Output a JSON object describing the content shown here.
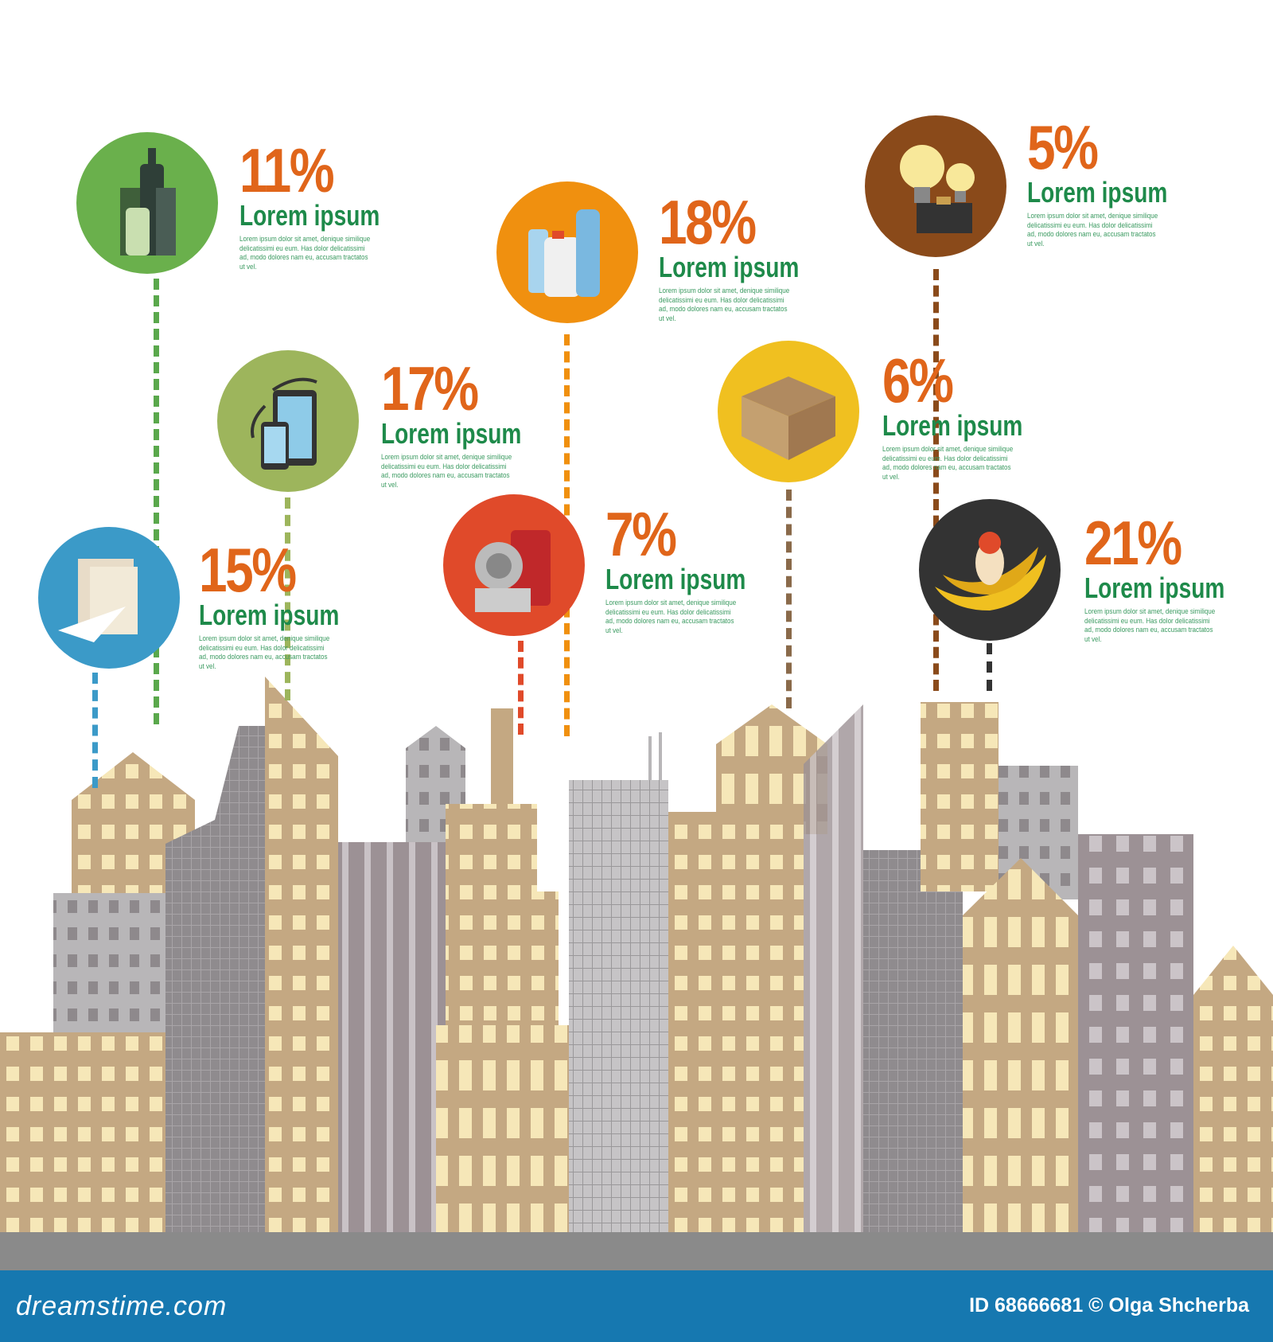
{
  "items": [
    {
      "id": "glass",
      "icon": "bottles-icon",
      "percent": "11%",
      "title": "Lorem ipsum",
      "color": "#6ab04c"
    },
    {
      "id": "electronics",
      "icon": "devices-icon",
      "percent": "17%",
      "title": "Lorem ipsum",
      "color": "#9db55c"
    },
    {
      "id": "paper",
      "icon": "paper-icon",
      "percent": "15%",
      "title": "Lorem ipsum",
      "color": "#3b9ac8"
    },
    {
      "id": "plastic",
      "icon": "plastic-bottles-icon",
      "percent": "18%",
      "title": "Lorem ipsum",
      "color": "#f0900f"
    },
    {
      "id": "metal",
      "icon": "cans-icon",
      "percent": "7%",
      "title": "Lorem ipsum",
      "color": "#e04a2a"
    },
    {
      "id": "cardboard",
      "icon": "box-icon",
      "percent": "6%",
      "title": "Lorem ipsum",
      "color": "#f0c020"
    },
    {
      "id": "hazardous",
      "icon": "bulb-battery-icon",
      "percent": "5%",
      "title": "Lorem ipsum",
      "color": "#8a4a1a"
    },
    {
      "id": "organic",
      "icon": "food-waste-icon",
      "percent": "21%",
      "title": "Lorem ipsum",
      "color": "#333333"
    }
  ],
  "description": "Lorem ipsum dolor sit amet, denique similique delicatissimi eu eum. Has dolor delicatissimi ad, modo dolores nam eu, accusam tractatos ut vel.",
  "footer": {
    "logo": "dreamstime.com",
    "credit": "ID 68666681 © Olga Shcherba"
  },
  "colors": {
    "percent": "#e0651a",
    "title": "#1e8a4a",
    "footer": "#1678b0"
  }
}
